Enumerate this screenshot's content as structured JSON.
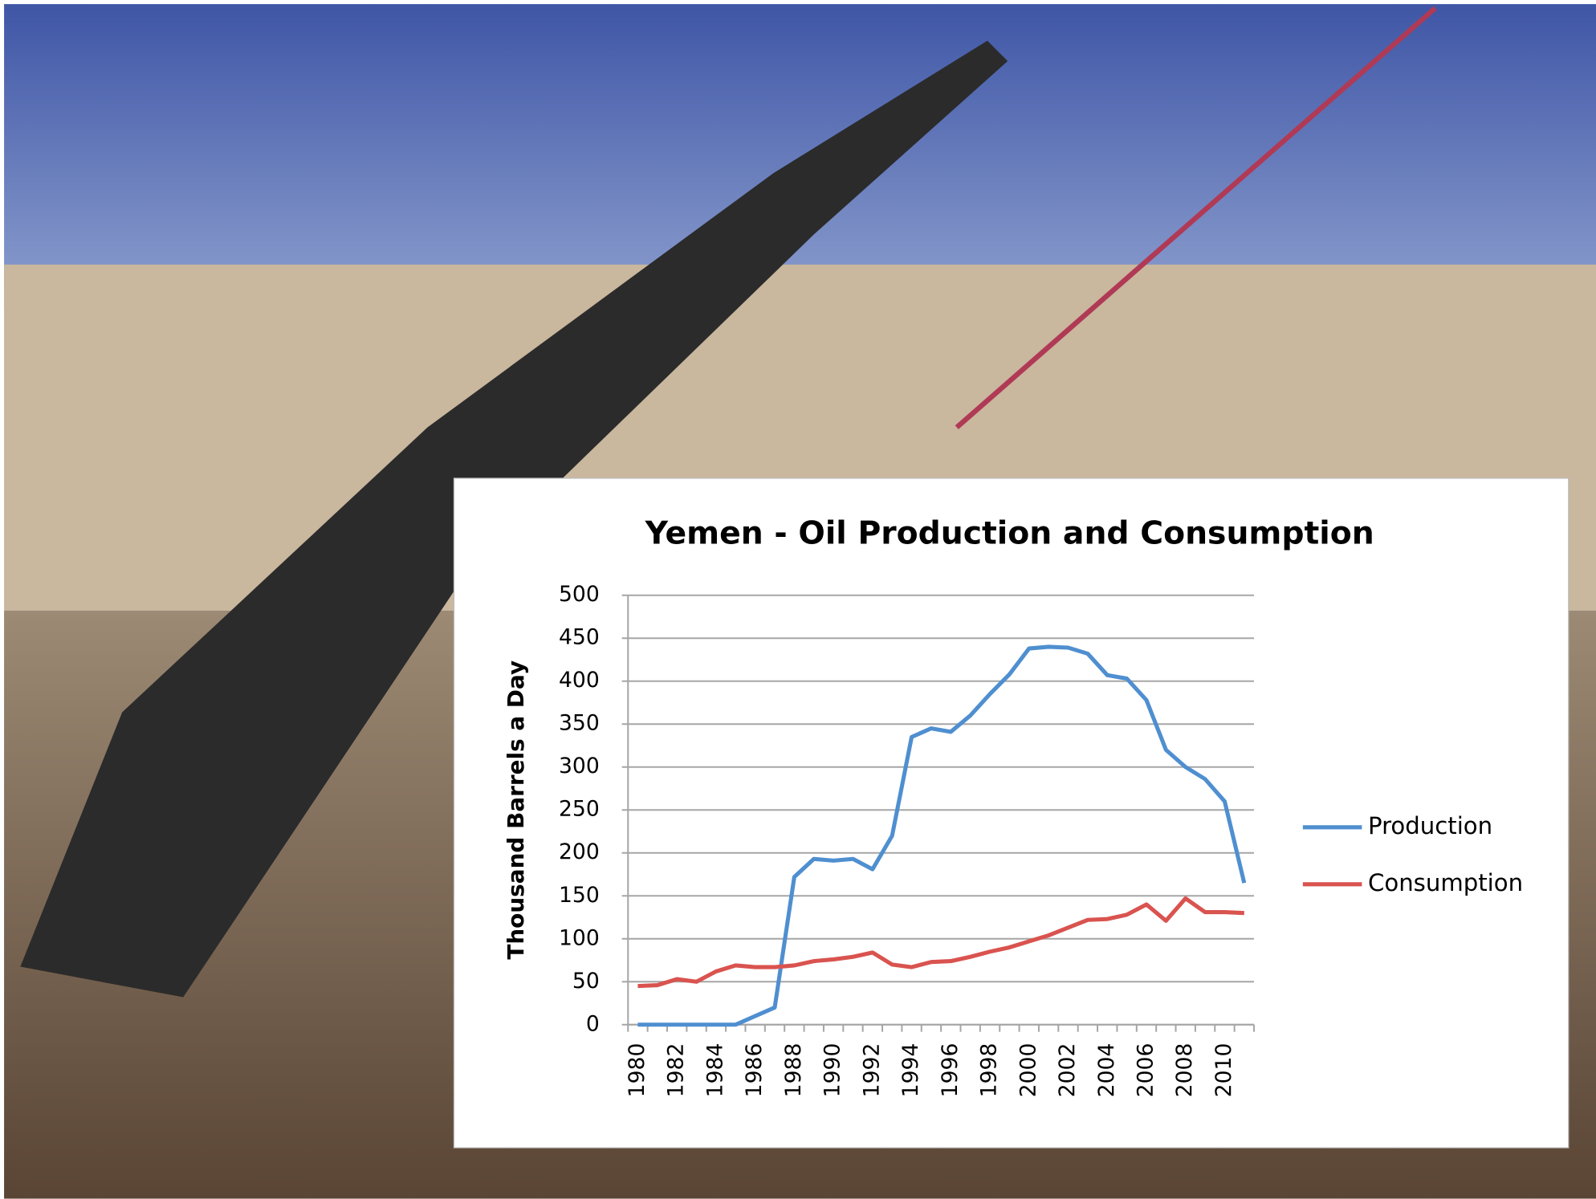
{
  "chart_data": {
    "type": "line",
    "title": "Yemen - Oil Production and Consumption",
    "y_label": "Thousand Barrels a Day",
    "categories": [
      "1980",
      null,
      "1982",
      null,
      "1984",
      null,
      "1986",
      null,
      "1988",
      null,
      "1990",
      null,
      "1992",
      null,
      "1994",
      null,
      "1996",
      null,
      "1998",
      null,
      "2000",
      null,
      "2002",
      null,
      "2004",
      null,
      "2006",
      null,
      "2008",
      null,
      "2010",
      null
    ],
    "series": [
      {
        "name": "Production",
        "color": "#4f8fd0",
        "values": [
          0,
          0,
          0,
          0,
          0,
          0,
          10,
          20,
          172,
          193,
          191,
          193,
          181,
          220,
          335,
          345,
          341,
          360,
          385,
          408,
          438,
          440,
          439,
          432,
          407,
          403,
          378,
          320,
          300,
          286,
          260,
          165
        ]
      },
      {
        "name": "Consumption",
        "color": "#d9534f",
        "values": [
          45,
          46,
          53,
          50,
          62,
          69,
          67,
          67,
          69,
          74,
          76,
          79,
          84,
          70,
          67,
          73,
          74,
          79,
          85,
          90,
          97,
          104,
          113,
          122,
          123,
          128,
          140,
          121,
          147,
          131,
          131,
          130
        ]
      }
    ],
    "ylim": [
      0,
      500
    ],
    "yticks": [
      0,
      50,
      100,
      150,
      200,
      250,
      300,
      350,
      400,
      450,
      500
    ],
    "grid": true,
    "legend": "right"
  }
}
